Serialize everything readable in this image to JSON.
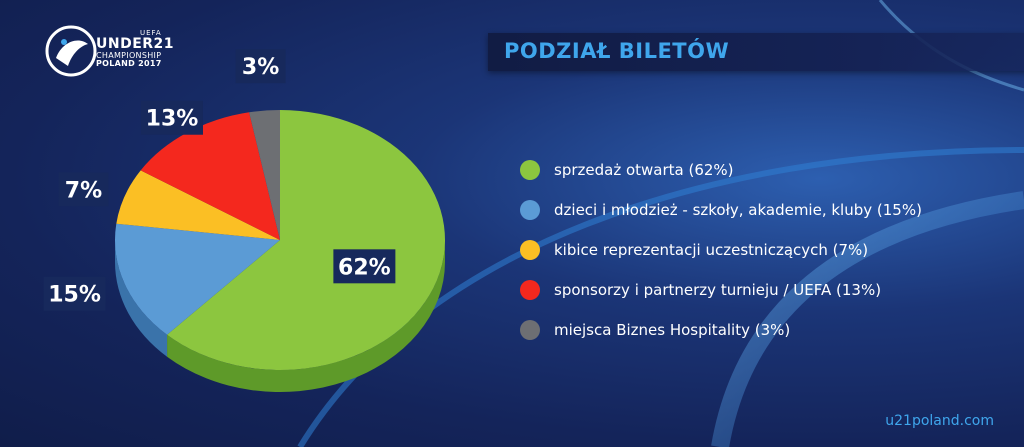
{
  "logo": {
    "uefa": "UEFA",
    "under21": "UNDER21",
    "championship": "CHAMPIONSHIP",
    "poland": "POLAND 2017"
  },
  "title": "PODZIAŁ BILETÓW",
  "chart_data": {
    "type": "pie",
    "title": "PODZIAŁ BILETÓW",
    "style": "3d",
    "slices": [
      {
        "label": "sprzedaż otwarta  (62%)",
        "value": 62,
        "display": "62%",
        "color": "#8cc63f",
        "side": "#5e9a29"
      },
      {
        "label": "dzieci i młodzież - szkoły, akademie, kluby  (15%)",
        "value": 15,
        "display": "15%",
        "color": "#5b9bd5",
        "side": "#3a73aa"
      },
      {
        "label": "kibice reprezentacji uczestniczących (7%)",
        "value": 7,
        "display": "7%",
        "color": "#fbbf24",
        "side": "#c68a12"
      },
      {
        "label": "sponsorzy i partnerzy turnieju / UEFA  (13%)",
        "value": 13,
        "display": "13%",
        "color": "#f4281e",
        "side": "#a81810"
      },
      {
        "label": "miejsca Biznes Hospitality  (3%)",
        "value": 3,
        "display": "3%",
        "color": "#6d6f73",
        "side": "#46484c"
      }
    ]
  },
  "footer": "u21poland.com"
}
